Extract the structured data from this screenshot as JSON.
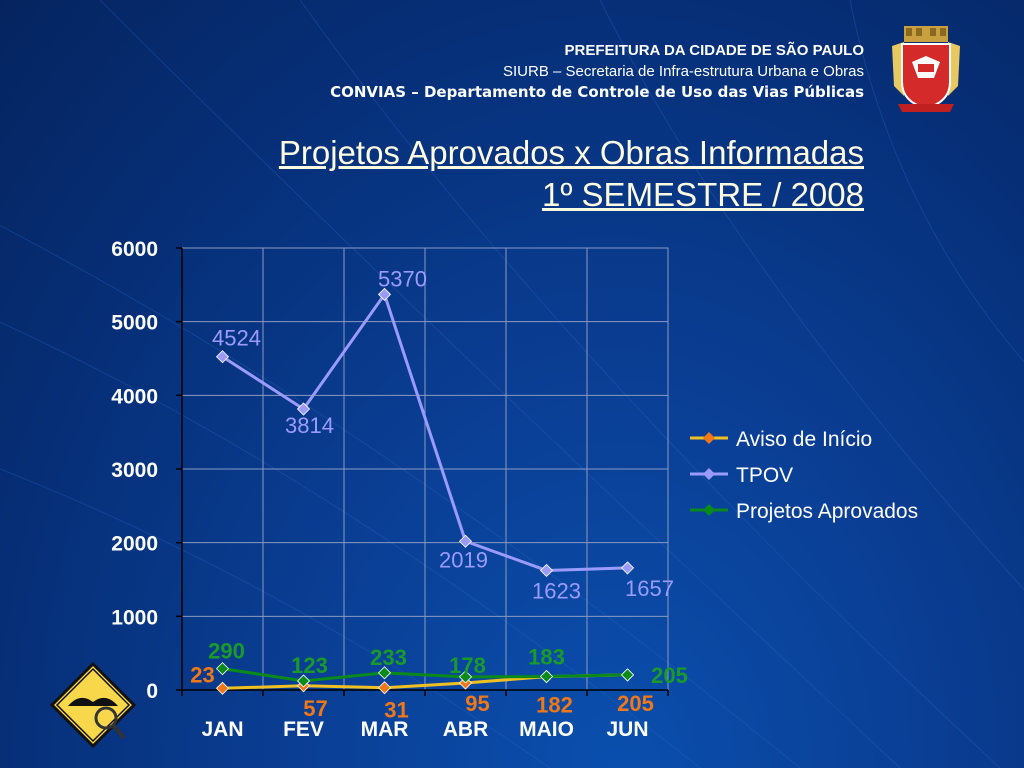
{
  "header": {
    "line1": "PREFEITURA DA CIDADE DE SÃO PAULO",
    "line2": "SIURB – Secretaria de Infra-estrutura Urbana e Obras",
    "line3": "CONVIAS – Departamento de Controle de Uso das Vias Públicas"
  },
  "title": {
    "line1": "Projetos Aprovados x Obras Informadas",
    "line2": "1º SEMESTRE / 2008"
  },
  "colors": {
    "aviso": "#f07818",
    "tpov": "#9b9bff",
    "projetos": "#0a8a1a",
    "aviso_label": "#f07818",
    "projetos_label": "#1a9a2a",
    "tpov_label": "#9b9bff"
  },
  "chart_data": {
    "type": "line",
    "categories": [
      "JAN",
      "FEV",
      "MAR",
      "ABR",
      "MAIO",
      "JUN"
    ],
    "ylim": [
      0,
      6000
    ],
    "yticks": [
      "0",
      "1000",
      "2000",
      "3000",
      "4000",
      "5000",
      "6000"
    ],
    "grid": true,
    "legend_position": "right",
    "series": [
      {
        "name": "Aviso de Início",
        "values": [
          23,
          57,
          31,
          95,
          182,
          205
        ],
        "labels": [
          "23",
          "57",
          "31",
          "95",
          "182",
          "205"
        ]
      },
      {
        "name": "TPOV",
        "values": [
          4524,
          3814,
          5370,
          2019,
          1623,
          1657
        ],
        "labels": [
          "4524",
          "3814",
          "5370",
          "2019",
          "1623",
          "1657"
        ]
      },
      {
        "name": "Projetos Aprovados",
        "values": [
          290,
          123,
          233,
          178,
          183,
          205
        ],
        "labels": [
          "290",
          "123",
          "233",
          "178",
          "183",
          "205"
        ]
      }
    ]
  }
}
